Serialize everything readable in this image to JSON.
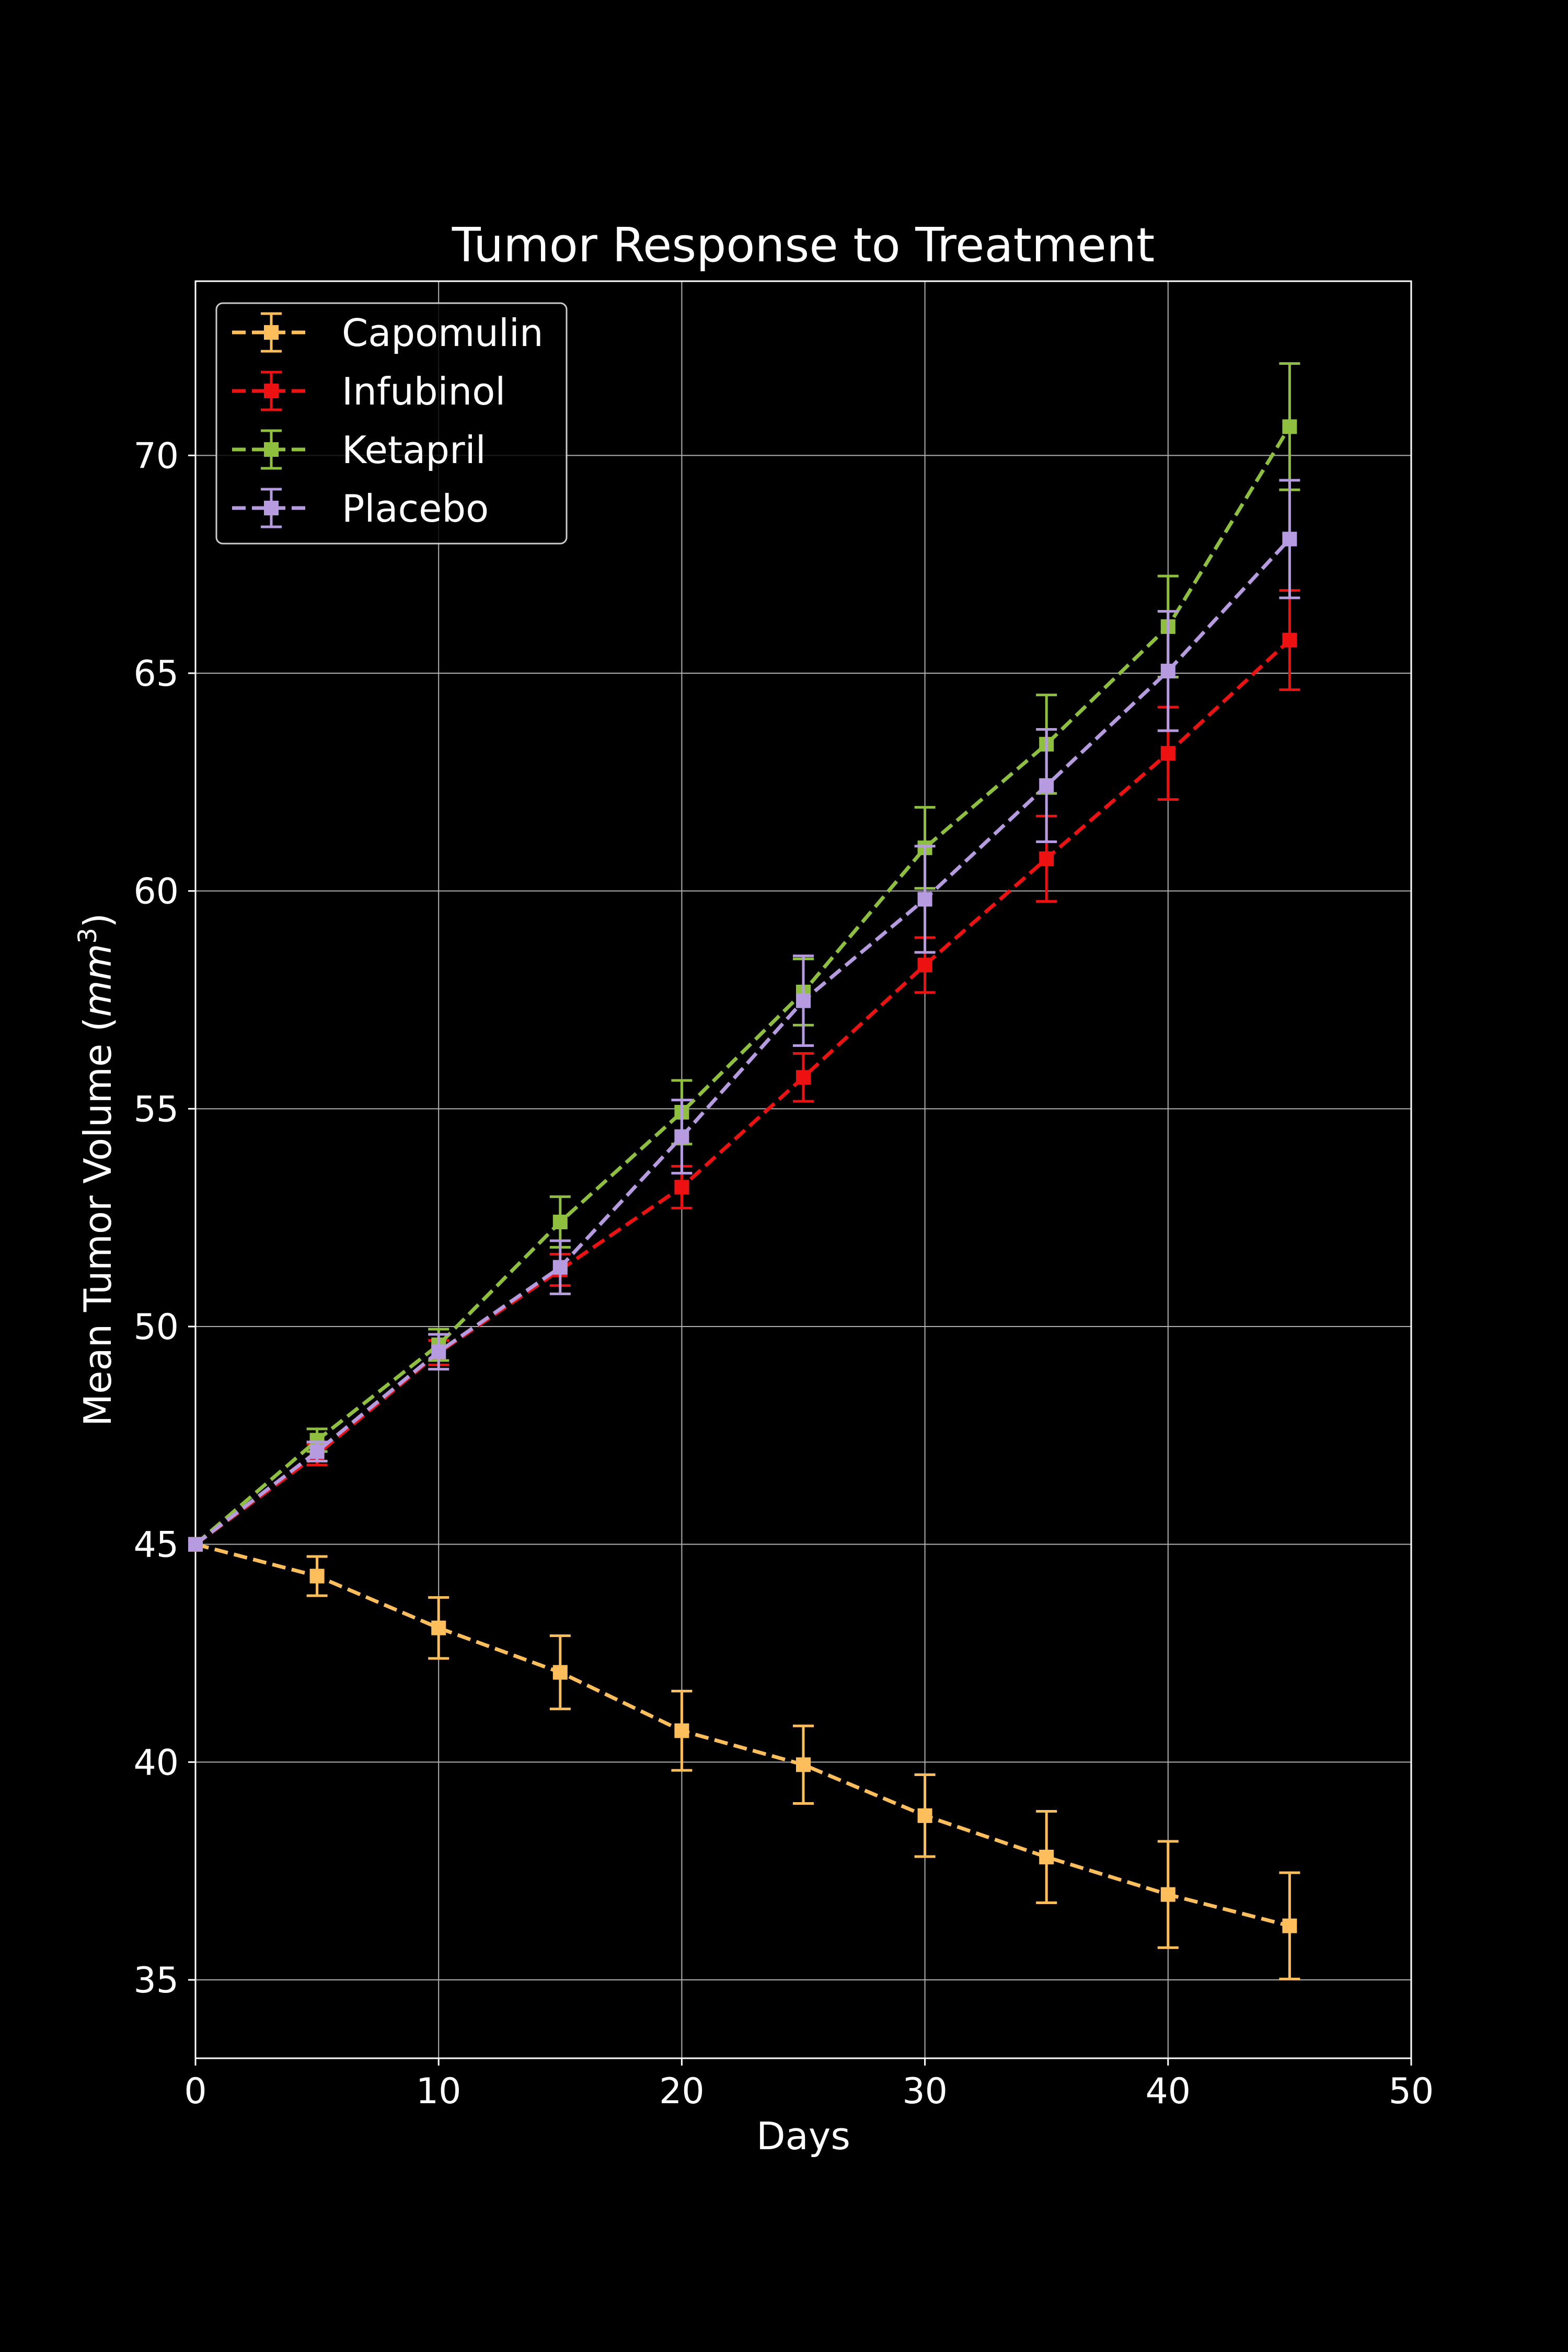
{
  "chart_data": {
    "type": "line",
    "title": "Tumor Response to Treatment",
    "xlabel": "Days",
    "ylabel_prefix": "Mean Tumor Volume (",
    "ylabel_unit": "mm",
    "ylabel_sup": "3",
    "ylabel_suffix": ")",
    "xlim": [
      0,
      50
    ],
    "ylim": [
      33.2,
      74
    ],
    "xticks": [
      0,
      10,
      20,
      30,
      40,
      50
    ],
    "yticks": [
      35,
      40,
      45,
      50,
      55,
      60,
      65,
      70
    ],
    "grid": true,
    "legend_position": "top-left",
    "x": [
      0,
      5,
      10,
      15,
      20,
      25,
      30,
      35,
      40,
      45
    ],
    "series": [
      {
        "name": "Capomulin",
        "color": "#ffbe5c",
        "values": [
          45.0,
          44.27,
          43.08,
          42.06,
          40.72,
          39.94,
          38.77,
          37.82,
          36.96,
          36.24
        ],
        "errors": [
          0.0,
          0.45,
          0.7,
          0.84,
          0.91,
          0.89,
          0.94,
          1.05,
          1.22,
          1.22
        ]
      },
      {
        "name": "Infubinol",
        "color": "#ee1111",
        "values": [
          45.0,
          47.06,
          49.4,
          51.3,
          53.2,
          55.72,
          58.3,
          60.74,
          63.16,
          65.76
        ],
        "errors": [
          0.0,
          0.24,
          0.28,
          0.36,
          0.48,
          0.55,
          0.63,
          0.98,
          1.06,
          1.14
        ]
      },
      {
        "name": "Ketapril",
        "color": "#8fbf3f",
        "values": [
          45.0,
          47.39,
          49.58,
          52.4,
          54.92,
          57.68,
          60.99,
          63.37,
          66.07,
          70.66
        ],
        "errors": [
          0.0,
          0.26,
          0.36,
          0.58,
          0.73,
          0.76,
          0.93,
          1.13,
          1.16,
          1.45
        ]
      },
      {
        "name": "Placebo",
        "color": "#b79be0",
        "values": [
          45.0,
          47.13,
          49.42,
          51.36,
          54.36,
          57.48,
          59.81,
          62.42,
          65.05,
          68.08
        ],
        "errors": [
          0.0,
          0.22,
          0.4,
          0.61,
          0.84,
          1.03,
          1.22,
          1.29,
          1.37,
          1.35
        ]
      }
    ]
  }
}
